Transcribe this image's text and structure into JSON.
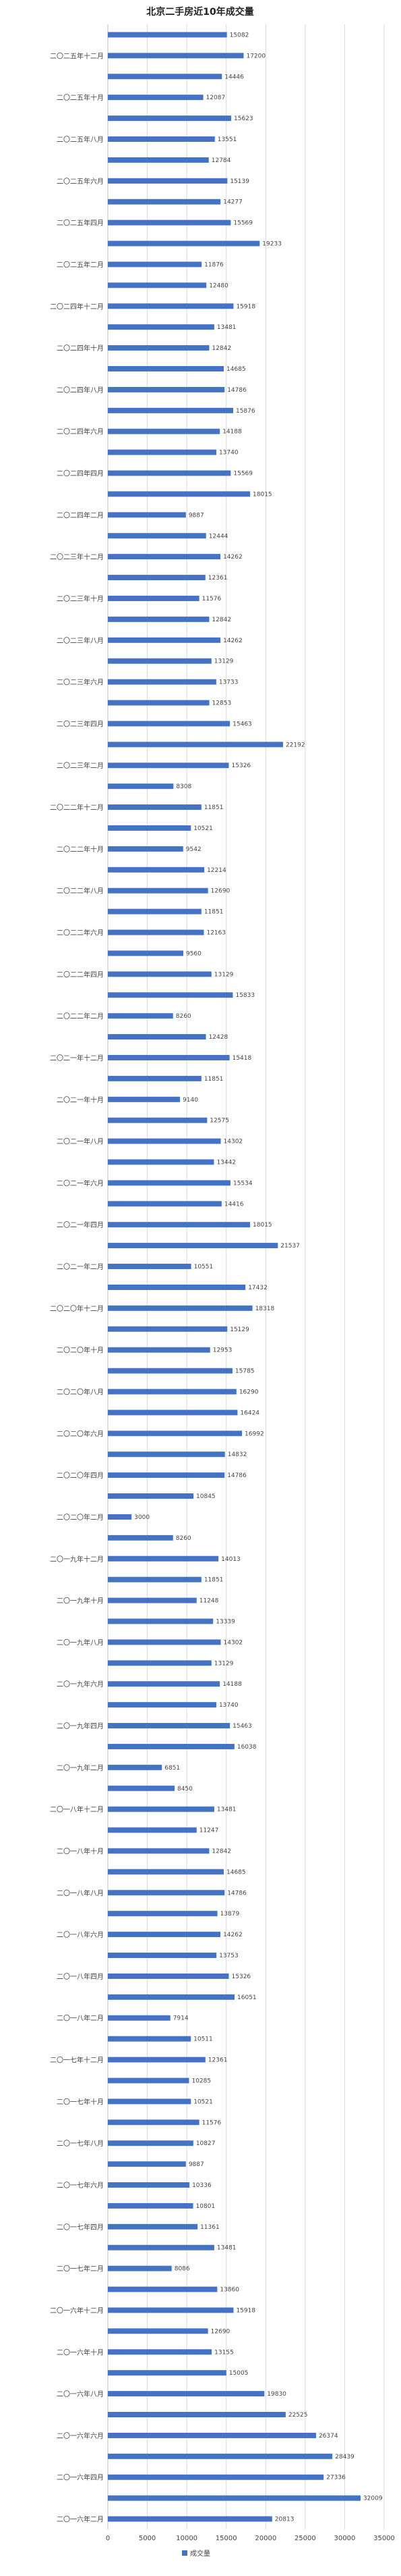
{
  "chart_data": {
    "type": "bar",
    "orientation": "horizontal",
    "title": "北京二手房近10年成交量",
    "xlabel": "",
    "ylabel": "",
    "xlim": [
      0,
      35000
    ],
    "xticks": [
      0,
      5000,
      10000,
      15000,
      20000,
      25000,
      30000,
      35000
    ],
    "grid": true,
    "legend_position": "bottom",
    "color": "#4472C4",
    "categories": [
      "",
      "二〇二五年十二月",
      "",
      "二〇二五年十月",
      "",
      "二〇二五年八月",
      "",
      "二〇二五年六月",
      "",
      "二〇二五年四月",
      "",
      "二〇二五年二月",
      "",
      "二〇二四年十二月",
      "",
      "二〇二四年十月",
      "",
      "二〇二四年八月",
      "",
      "二〇二四年六月",
      "",
      "二〇二四年四月",
      "",
      "二〇二四年二月",
      "",
      "二〇二三年十二月",
      "",
      "二〇二三年十月",
      "",
      "二〇二三年八月",
      "",
      "二〇二三年六月",
      "",
      "二〇二三年四月",
      "",
      "二〇二三年二月",
      "",
      "二〇二二年十二月",
      "",
      "二〇二二年十月",
      "",
      "二〇二二年八月",
      "",
      "二〇二二年六月",
      "",
      "二〇二二年四月",
      "",
      "二〇二二年二月",
      "",
      "二〇二一年十二月",
      "",
      "二〇二一年十月",
      "",
      "二〇二一年八月",
      "",
      "二〇二一年六月",
      "",
      "二〇二一年四月",
      "",
      "二〇二一年二月",
      "",
      "二〇二〇年十二月",
      "",
      "二〇二〇年十月",
      "",
      "二〇二〇年八月",
      "",
      "二〇二〇年六月",
      "",
      "二〇二〇年四月",
      "",
      "二〇二〇年二月",
      "",
      "二〇一九年十二月",
      "",
      "二〇一九年十月",
      "",
      "二〇一九年八月",
      "",
      "二〇一九年六月",
      "",
      "二〇一九年四月",
      "",
      "二〇一九年二月",
      "",
      "二〇一八年十二月",
      "",
      "二〇一八年十月",
      "",
      "二〇一八年八月",
      "",
      "二〇一八年六月",
      "",
      "二〇一八年四月",
      "",
      "二〇一八年二月",
      "",
      "二〇一七年十二月",
      "",
      "二〇一七年十月",
      "",
      "二〇一七年八月",
      "",
      "二〇一七年六月",
      "",
      "二〇一七年四月",
      "",
      "二〇一七年二月",
      "",
      "二〇一六年十二月",
      "",
      "二〇一六年十月",
      "",
      "二〇一六年八月",
      "",
      "二〇一六年六月",
      "",
      "二〇一六年四月",
      "",
      "二〇一六年二月"
    ],
    "series": [
      {
        "name": "成交量",
        "values": [
          15082,
          17200,
          14446,
          12087,
          15623,
          13551,
          12784,
          15139,
          14277,
          15569,
          19233,
          11876,
          12480,
          15918,
          13481,
          12842,
          14685,
          14786,
          15876,
          14188,
          13740,
          15569,
          18015,
          9887,
          12444,
          14262,
          12361,
          11576,
          12842,
          14262,
          13129,
          13733,
          12853,
          15463,
          22192,
          15326,
          8308,
          11851,
          10521,
          9542,
          12214,
          12690,
          11851,
          12163,
          9560,
          13129,
          15833,
          8260,
          12428,
          15418,
          11851,
          9140,
          12575,
          14302,
          13442,
          15534,
          14416,
          18015,
          21537,
          10551,
          17432,
          18318,
          15129,
          12953,
          15785,
          16290,
          16424,
          16992,
          14832,
          14786,
          10845,
          3000,
          8260,
          14013,
          11851,
          11248,
          13339,
          14302,
          13129,
          14188,
          13740,
          15463,
          16038,
          6851,
          8450,
          13481,
          11247,
          12842,
          14685,
          14786,
          13879,
          14262,
          13753,
          15326,
          16051,
          7914,
          10511,
          12361,
          10285,
          10521,
          11576,
          10827,
          9887,
          10336,
          10801,
          11361,
          13481,
          8086,
          13860,
          15918,
          12690,
          13155,
          15005,
          19830,
          22525,
          26374,
          28439,
          27336,
          32009,
          20813
        ]
      }
    ]
  }
}
